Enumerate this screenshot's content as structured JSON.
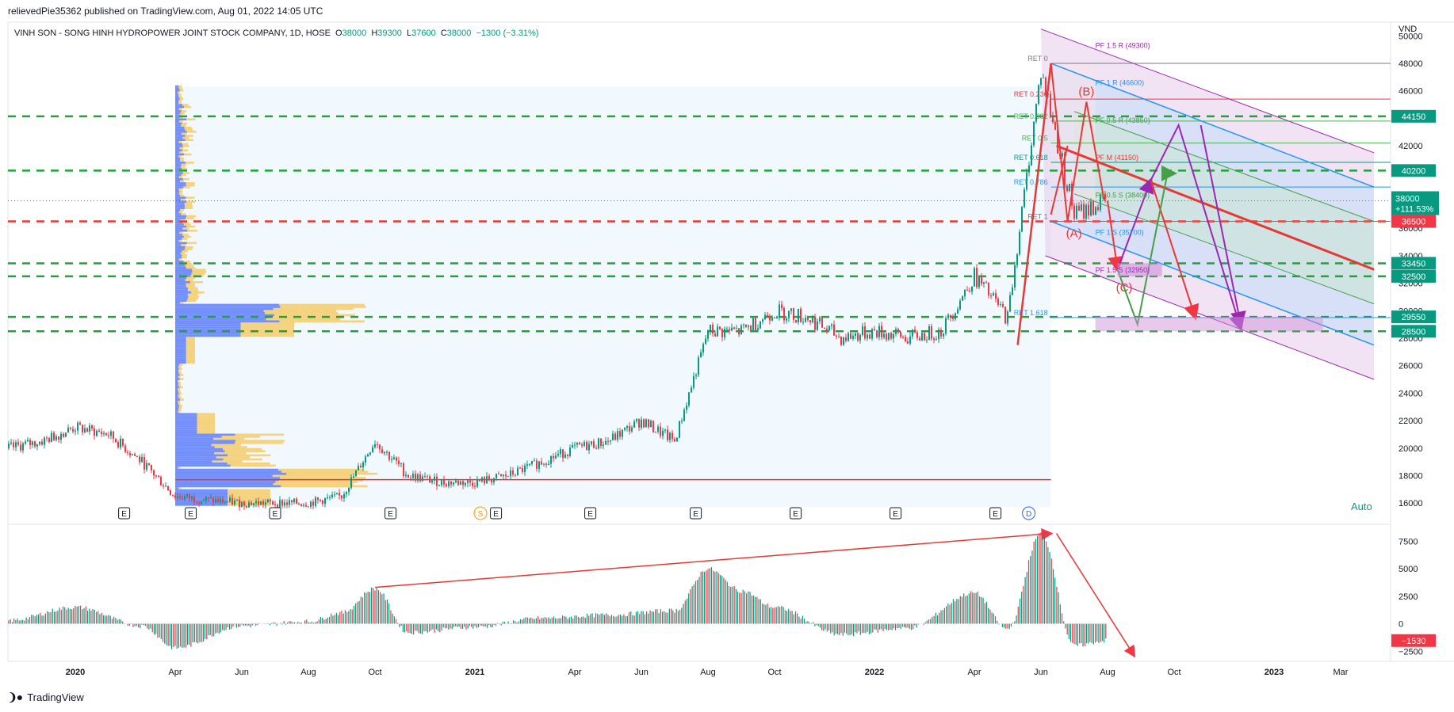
{
  "header": {
    "publisher_line": "relievedPie35362 published on TradingView.com, Aug 01, 2022 14:05 UTC"
  },
  "legend": {
    "symbol": "VINH SON - SONG HINH HYDROPOWER JOINT STOCK COMPANY, 1D, HOSE",
    "open_label": "O",
    "open": "38000",
    "high_label": "H",
    "high": "39300",
    "low_label": "L",
    "low": "37600",
    "close_label": "C",
    "close": "38000",
    "change": "−1300 (−3.31%)"
  },
  "footer": {
    "brand": "TradingView"
  },
  "auto_label": "Auto",
  "colors": {
    "up": "#089981",
    "down": "#f23645",
    "green_dash": "#22a03b",
    "red_line": "#e53935",
    "purple": "#9c27b0",
    "blue": "#2196f3",
    "badge_green": "#089981",
    "badge_red": "#f23645"
  },
  "chart_data": {
    "type": "line",
    "title": "",
    "price_axis": {
      "unit": "VND",
      "ticks": [
        "50000",
        "48000",
        "46000",
        "44000",
        "42000",
        "40000",
        "38000",
        "36000",
        "34000",
        "32000",
        "30000",
        "28000",
        "26000",
        "24000",
        "22000",
        "20000",
        "18000",
        "16000"
      ],
      "range": [
        15000,
        51000
      ]
    },
    "time_axis": {
      "labels": [
        "2020",
        "Apr",
        "Jun",
        "Aug",
        "Oct",
        "2021",
        "Apr",
        "Jun",
        "Aug",
        "Oct",
        "2022",
        "Apr",
        "Jun",
        "Aug",
        "Oct",
        "2023",
        "Mar"
      ],
      "bold": [
        "2020",
        "2021",
        "2022",
        "2023"
      ]
    },
    "price_series": {
      "name": "Close",
      "x": [
        "2019-11",
        "2019-12",
        "2020-01",
        "2020-02",
        "2020-03",
        "2020-04",
        "2020-05",
        "2020-06",
        "2020-07",
        "2020-08",
        "2020-09",
        "2020-10",
        "2020-11",
        "2020-12",
        "2021-01",
        "2021-02",
        "2021-03",
        "2021-04",
        "2021-05",
        "2021-06",
        "2021-07",
        "2021-08",
        "2021-09",
        "2021-10",
        "2021-11",
        "2021-12",
        "2022-01",
        "2022-02",
        "2022-03",
        "2022-04",
        "2022-05",
        "2022-06",
        "2022-07",
        "2022-08-01"
      ],
      "y": [
        20000,
        20500,
        21500,
        21000,
        19000,
        16500,
        16200,
        16000,
        16000,
        16000,
        16500,
        20500,
        18000,
        17500,
        17500,
        18000,
        19000,
        20000,
        20500,
        22000,
        20500,
        28500,
        28500,
        30000,
        29500,
        28000,
        28500,
        28000,
        28500,
        32500,
        29500,
        47500,
        37000,
        38000
      ]
    },
    "horizontal_levels": [
      {
        "value": 44150,
        "style": "green-dash",
        "badge": "44150"
      },
      {
        "value": 40200,
        "style": "green-dash",
        "badge": "40200"
      },
      {
        "value": 36500,
        "style": "red-dash",
        "badge": "36500"
      },
      {
        "value": 33450,
        "style": "green-dash",
        "badge": "33450"
      },
      {
        "value": 32500,
        "style": "green-dash",
        "badge": "32500"
      },
      {
        "value": 29550,
        "style": "green-dash",
        "badge": "29550"
      },
      {
        "value": 28500,
        "style": "green-dash",
        "badge": "28500"
      }
    ],
    "current_price": {
      "value": 38000,
      "label": "38000",
      "change_label": "+111.53%"
    },
    "support_line": 17700,
    "fib_retracement": [
      {
        "label": "RET 0",
        "value": 48000
      },
      {
        "label": "RET 0.236",
        "value": 45400
      },
      {
        "label": "RET 0.382",
        "value": 43800
      },
      {
        "label": "RET 0.5",
        "value": 42200
      },
      {
        "label": "RET 0.618",
        "value": 40800
      },
      {
        "label": "RET 0.786",
        "value": 39000
      },
      {
        "label": "RET 1",
        "value": 36500
      },
      {
        "label": "RET 1.618",
        "value": 29500
      }
    ],
    "pitchfork_labels": [
      {
        "label": "PF 1.5 R (49300)",
        "value": 49300
      },
      {
        "label": "PF 1 R (46600)",
        "value": 46600
      },
      {
        "label": "PF 0.5 R (43850)",
        "value": 43850
      },
      {
        "label": "PF M (41150)",
        "value": 41150
      },
      {
        "label": "PF 0.5 S (38400)",
        "value": 38400
      },
      {
        "label": "PF 1 S (35700)",
        "value": 35700
      },
      {
        "label": "PF 1.5 S (32950)",
        "value": 32950
      }
    ],
    "wave_labels": [
      "(A)",
      "(B)",
      "(C)"
    ],
    "earnings_markers": [
      "E",
      "E",
      "E",
      "E",
      "E",
      "E",
      "E",
      "E",
      "E",
      "E"
    ],
    "dividend_marker": "D",
    "split_marker": "S",
    "oscillator": {
      "ticks": [
        "7500",
        "5000",
        "2500",
        "0",
        "−2500"
      ],
      "range": [
        -3200,
        8600
      ],
      "last_value": "−1530",
      "x": [
        "2019-11",
        "2020-01",
        "2020-03",
        "2020-04",
        "2020-06",
        "2020-08",
        "2020-09",
        "2020-10",
        "2020-11",
        "2021-01",
        "2021-03",
        "2021-05",
        "2021-07",
        "2021-08",
        "2021-09",
        "2021-10",
        "2021-12",
        "2022-02",
        "2022-04",
        "2022-05",
        "2022-06",
        "2022-07",
        "2022-08-01"
      ],
      "y": [
        300,
        1500,
        -200,
        -2200,
        -200,
        200,
        1000,
        3200,
        -800,
        -300,
        500,
        800,
        1200,
        5000,
        3000,
        1500,
        -1000,
        -400,
        2800,
        -500,
        8200,
        -2000,
        -1530
      ]
    }
  }
}
